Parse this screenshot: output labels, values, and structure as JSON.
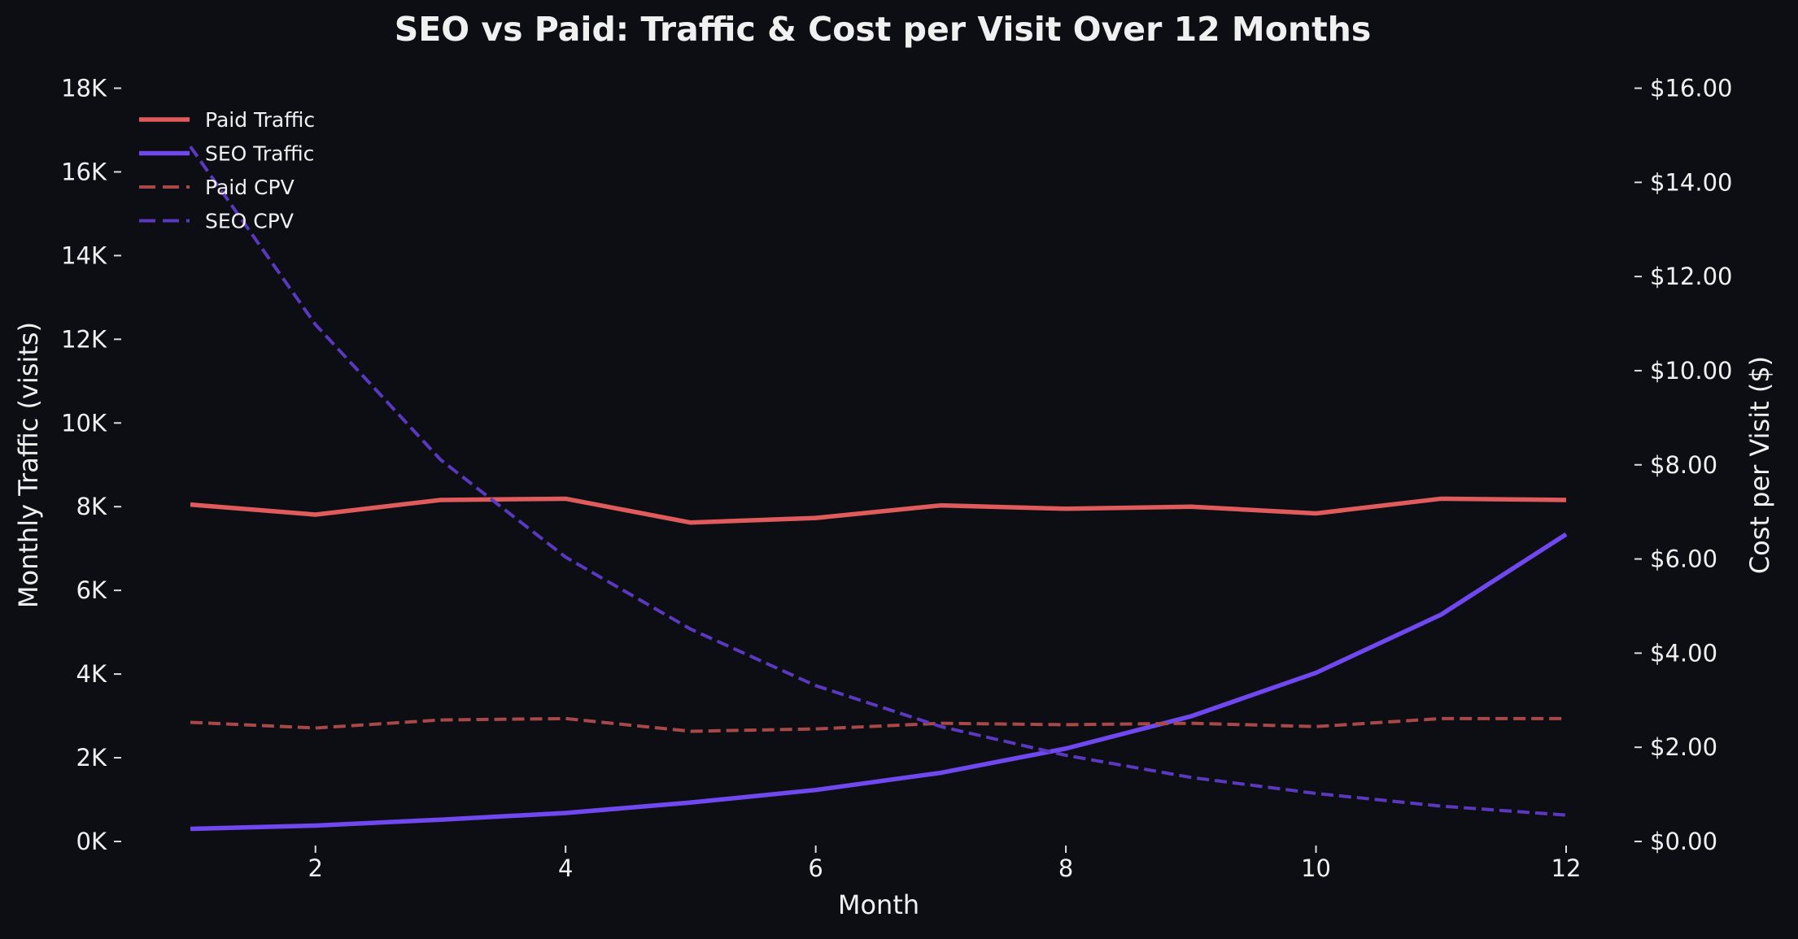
{
  "chart_data": {
    "type": "line",
    "title": "SEO vs Paid: Traffic & Cost per Visit Over 12 Months",
    "xlabel": "Month",
    "ylabel": "Monthly Traffic (visits)",
    "y2label": "Cost per Visit ($)",
    "x": [
      1,
      2,
      3,
      4,
      5,
      6,
      7,
      8,
      9,
      10,
      11,
      12
    ],
    "xticks": [
      2,
      4,
      6,
      8,
      10,
      12
    ],
    "xtick_labels": [
      "2",
      "4",
      "6",
      "8",
      "10",
      "12"
    ],
    "ylim": [
      0,
      18000
    ],
    "yticks": [
      0,
      2000,
      4000,
      6000,
      8000,
      10000,
      12000,
      14000,
      16000,
      18000
    ],
    "ytick_labels": [
      "0K",
      "2K",
      "4K",
      "6K",
      "8K",
      "10K",
      "12K",
      "14K",
      "16K",
      "18K"
    ],
    "y2lim": [
      0,
      16
    ],
    "y2ticks": [
      0,
      2,
      4,
      6,
      8,
      10,
      12,
      14,
      16
    ],
    "y2tick_labels": [
      "$0.00",
      "$2.00",
      "$4.00",
      "$6.00",
      "$8.00",
      "$10.00",
      "$12.00",
      "$14.00",
      "$16.00"
    ],
    "grid": false,
    "legend_position": "top-left",
    "series": [
      {
        "name": "Paid Traffic",
        "axis": "left",
        "style": "solid",
        "color": "#e05c5c",
        "values": [
          8050,
          7810,
          8160,
          8190,
          7620,
          7730,
          8030,
          7950,
          8000,
          7840,
          8190,
          8160
        ]
      },
      {
        "name": "SEO Traffic",
        "axis": "left",
        "style": "solid",
        "color": "#7048f0",
        "values": [
          300,
          380,
          520,
          680,
          930,
          1230,
          1640,
          2220,
          2990,
          4030,
          5420,
          7340
        ]
      },
      {
        "name": "Paid CPV",
        "axis": "right",
        "style": "dashed",
        "color": "#a84848",
        "values": [
          2.53,
          2.41,
          2.58,
          2.61,
          2.34,
          2.39,
          2.51,
          2.48,
          2.51,
          2.44,
          2.61,
          2.61
        ]
      },
      {
        "name": "SEO CPV",
        "axis": "right",
        "style": "dashed",
        "color": "#5a38c0",
        "values": [
          14.76,
          10.98,
          8.11,
          6.04,
          4.51,
          3.31,
          2.44,
          1.83,
          1.36,
          1.02,
          0.75,
          0.56
        ]
      }
    ]
  }
}
